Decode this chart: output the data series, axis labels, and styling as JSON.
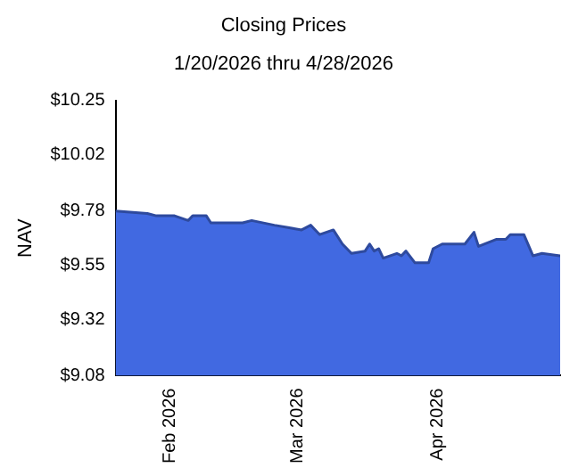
{
  "chart_data": {
    "type": "area",
    "title": "Closing Prices",
    "subtitle": "1/20/2026 thru 4/28/2026",
    "ylabel": "NAV",
    "x": [
      "2026-01-20",
      "2026-01-27",
      "2026-01-29",
      "2026-02-02",
      "2026-02-05",
      "2026-02-06",
      "2026-02-09",
      "2026-02-10",
      "2026-02-17",
      "2026-02-19",
      "2026-02-24",
      "2026-02-27",
      "2026-03-02",
      "2026-03-04",
      "2026-03-06",
      "2026-03-09",
      "2026-03-11",
      "2026-03-13",
      "2026-03-16",
      "2026-03-17",
      "2026-03-18",
      "2026-03-19",
      "2026-03-20",
      "2026-03-23",
      "2026-03-24",
      "2026-03-25",
      "2026-03-27",
      "2026-03-30",
      "2026-03-31",
      "2026-04-02",
      "2026-04-07",
      "2026-04-09",
      "2026-04-10",
      "2026-04-14",
      "2026-04-16",
      "2026-04-17",
      "2026-04-20",
      "2026-04-22",
      "2026-04-24",
      "2026-04-28"
    ],
    "series": [
      {
        "color": "#4169e1",
        "values": [
          9.78,
          9.77,
          9.76,
          9.76,
          9.74,
          9.76,
          9.76,
          9.73,
          9.73,
          9.74,
          9.72,
          9.71,
          9.7,
          9.72,
          9.68,
          9.7,
          9.64,
          9.6,
          9.61,
          9.64,
          9.61,
          9.62,
          9.58,
          9.6,
          9.59,
          9.61,
          9.56,
          9.56,
          9.62,
          9.64,
          9.64,
          9.69,
          9.63,
          9.66,
          9.66,
          9.68,
          9.68,
          9.59,
          9.6,
          9.59
        ]
      }
    ],
    "xlim": [
      "2026-01-20",
      "2026-04-28"
    ],
    "xticks": [
      {
        "value": "2026-02-01",
        "label": "Feb 2026"
      },
      {
        "value": "2026-03-01",
        "label": "Mar 2026"
      },
      {
        "value": "2026-04-01",
        "label": "Apr 2026"
      }
    ],
    "ylim": [
      9.08,
      10.25
    ],
    "yticks": [
      {
        "value": 9.08,
        "label": "$9.08"
      },
      {
        "value": 9.32,
        "label": "$9.32"
      },
      {
        "value": 9.55,
        "label": "$9.55"
      },
      {
        "value": 9.78,
        "label": "$9.78"
      },
      {
        "value": 10.02,
        "label": "$10.02"
      },
      {
        "value": 10.25,
        "label": "$10.25"
      }
    ],
    "grid": false,
    "legend": false
  }
}
